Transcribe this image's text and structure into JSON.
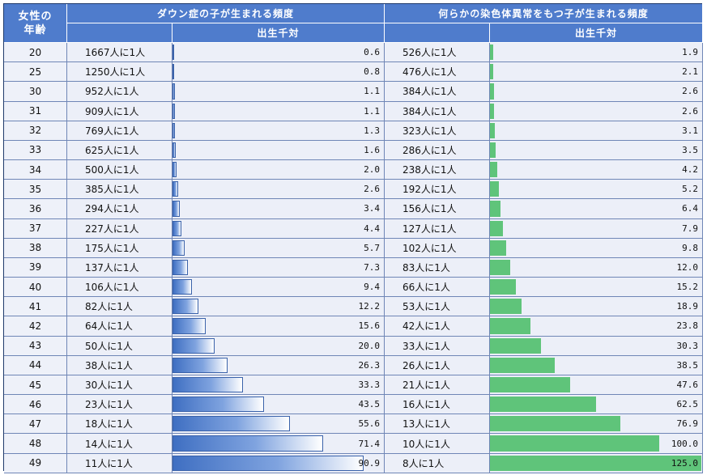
{
  "header": {
    "age_line1": "女性の",
    "age_line2": "年齢",
    "down_title": "ダウン症の子が生まれる頻度",
    "chrom_title": "何らかの染色体異常をもつ子が生まれる頻度",
    "per_thousand": "出生千対"
  },
  "colors": {
    "header_bg": "#4f7ccc",
    "down_bar": "#3f6fc2",
    "chrom_bar": "#5fc47a",
    "cell_bg": "#eceff8"
  },
  "chart_data": {
    "type": "table",
    "down_max": 100,
    "chrom_max": 125,
    "rows": [
      {
        "age": "20",
        "down_ratio": "1667人に1人",
        "down_val": "0.6",
        "chrom_ratio": "526人に1人",
        "chrom_val": "1.9"
      },
      {
        "age": "25",
        "down_ratio": "1250人に1人",
        "down_val": "0.8",
        "chrom_ratio": "476人に1人",
        "chrom_val": "2.1"
      },
      {
        "age": "30",
        "down_ratio": "952人に1人",
        "down_val": "1.1",
        "chrom_ratio": "384人に1人",
        "chrom_val": "2.6"
      },
      {
        "age": "31",
        "down_ratio": "909人に1人",
        "down_val": "1.1",
        "chrom_ratio": "384人に1人",
        "chrom_val": "2.6"
      },
      {
        "age": "32",
        "down_ratio": "769人に1人",
        "down_val": "1.3",
        "chrom_ratio": "323人に1人",
        "chrom_val": "3.1"
      },
      {
        "age": "33",
        "down_ratio": "625人に1人",
        "down_val": "1.6",
        "chrom_ratio": "286人に1人",
        "chrom_val": "3.5"
      },
      {
        "age": "34",
        "down_ratio": "500人に1人",
        "down_val": "2.0",
        "chrom_ratio": "238人に1人",
        "chrom_val": "4.2"
      },
      {
        "age": "35",
        "down_ratio": "385人に1人",
        "down_val": "2.6",
        "chrom_ratio": "192人に1人",
        "chrom_val": "5.2"
      },
      {
        "age": "36",
        "down_ratio": "294人に1人",
        "down_val": "3.4",
        "chrom_ratio": "156人に1人",
        "chrom_val": "6.4"
      },
      {
        "age": "37",
        "down_ratio": "227人に1人",
        "down_val": "4.4",
        "chrom_ratio": "127人に1人",
        "chrom_val": "7.9"
      },
      {
        "age": "38",
        "down_ratio": "175人に1人",
        "down_val": "5.7",
        "chrom_ratio": "102人に1人",
        "chrom_val": "9.8"
      },
      {
        "age": "39",
        "down_ratio": "137人に1人",
        "down_val": "7.3",
        "chrom_ratio": "83人に1人",
        "chrom_val": "12.0"
      },
      {
        "age": "40",
        "down_ratio": "106人に1人",
        "down_val": "9.4",
        "chrom_ratio": "66人に1人",
        "chrom_val": "15.2"
      },
      {
        "age": "41",
        "down_ratio": "82人に1人",
        "down_val": "12.2",
        "chrom_ratio": "53人に1人",
        "chrom_val": "18.9"
      },
      {
        "age": "42",
        "down_ratio": "64人に1人",
        "down_val": "15.6",
        "chrom_ratio": "42人に1人",
        "chrom_val": "23.8"
      },
      {
        "age": "43",
        "down_ratio": "50人に1人",
        "down_val": "20.0",
        "chrom_ratio": "33人に1人",
        "chrom_val": "30.3"
      },
      {
        "age": "44",
        "down_ratio": "38人に1人",
        "down_val": "26.3",
        "chrom_ratio": "26人に1人",
        "chrom_val": "38.5"
      },
      {
        "age": "45",
        "down_ratio": "30人に1人",
        "down_val": "33.3",
        "chrom_ratio": "21人に1人",
        "chrom_val": "47.6"
      },
      {
        "age": "46",
        "down_ratio": "23人に1人",
        "down_val": "43.5",
        "chrom_ratio": "16人に1人",
        "chrom_val": "62.5"
      },
      {
        "age": "47",
        "down_ratio": "18人に1人",
        "down_val": "55.6",
        "chrom_ratio": "13人に1人",
        "chrom_val": "76.9"
      },
      {
        "age": "48",
        "down_ratio": "14人に1人",
        "down_val": "71.4",
        "chrom_ratio": "10人に1人",
        "chrom_val": "100.0"
      },
      {
        "age": "49",
        "down_ratio": "11人に1人",
        "down_val": "90.9",
        "chrom_ratio": "8人に1人",
        "chrom_val": "125.0"
      }
    ]
  }
}
